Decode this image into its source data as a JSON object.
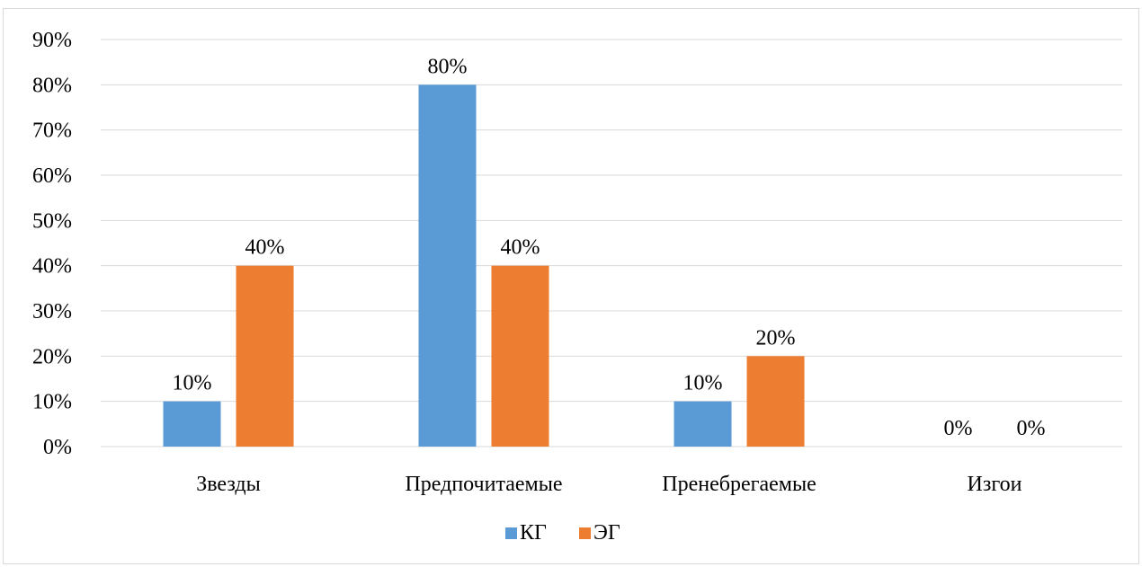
{
  "chart_data": {
    "type": "bar",
    "title": "",
    "xlabel": "",
    "ylabel": "",
    "categories": [
      "Звезды",
      "Предпочитаемые",
      "Пренебрегаемые",
      "Изгои"
    ],
    "series": [
      {
        "name": "КГ",
        "values": [
          10,
          80,
          10,
          0
        ],
        "labels": [
          "10%",
          "80%",
          "10%",
          "0%"
        ],
        "color": "#5b9bd5"
      },
      {
        "name": "ЭГ",
        "values": [
          40,
          40,
          20,
          0
        ],
        "labels": [
          "40%",
          "40%",
          "20%",
          "0%"
        ],
        "color": "#ed7d31"
      }
    ],
    "ylim": [
      0,
      90
    ],
    "y_ticks": [
      0,
      10,
      20,
      30,
      40,
      50,
      60,
      70,
      80,
      90
    ],
    "y_tick_labels": [
      "0%",
      "10%",
      "20%",
      "30%",
      "40%",
      "50%",
      "60%",
      "70%",
      "80%",
      "90%"
    ],
    "grid": true,
    "gridline_color": "#d9d9d9",
    "legend_position": "bottom-center"
  }
}
